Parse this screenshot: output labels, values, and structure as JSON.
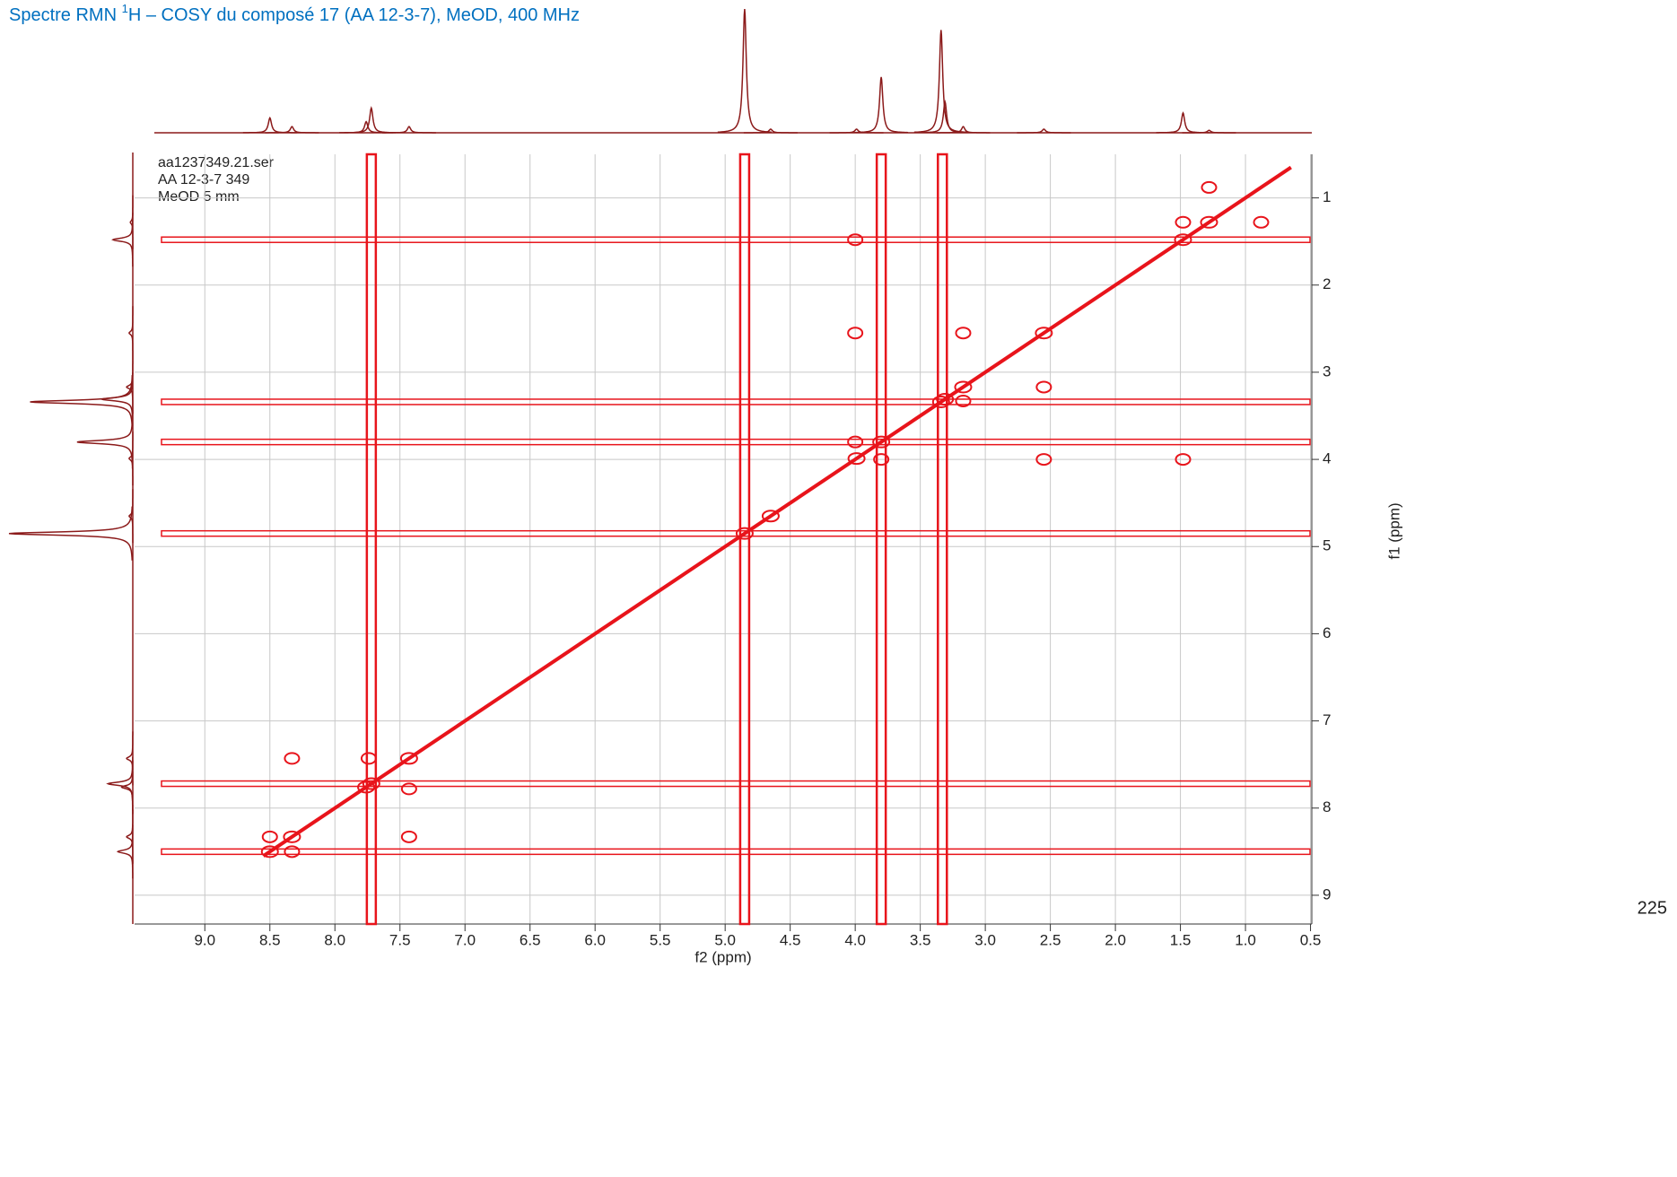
{
  "chart_data": {
    "type": "cosy",
    "title": [
      "Spectre RMN ",
      "1",
      "H – COSY du composé 17 (AA 12-3-7), MeOD, 400 MHz"
    ],
    "annotations": [
      "aa1237349.21.ser",
      "AA 12-3-7 349",
      "MeOD 5 mm"
    ],
    "xlabel": "f2 (ppm)",
    "ylabel": "f1 (ppm)",
    "page_number": "225",
    "xlim": [
      9.54,
      0.49
    ],
    "xticks": [
      {
        "value": 9,
        "label": "9.0"
      },
      8.5,
      {
        "value": 8,
        "label": "8.0"
      },
      7.5,
      {
        "value": 7,
        "label": "7.0"
      },
      6.5,
      {
        "value": 6,
        "label": "6.0"
      },
      5.5,
      {
        "value": 5,
        "label": "5.0"
      },
      4.5,
      {
        "value": 4,
        "label": "4.0"
      },
      3.5,
      {
        "value": 3,
        "label": "3.0"
      },
      2.5,
      {
        "value": 2,
        "label": "2.0"
      },
      1.5,
      {
        "value": 1,
        "label": "1.0"
      },
      0.5
    ],
    "ylim": [
      0.5,
      9.33
    ],
    "yticks": [
      1,
      2,
      3,
      4,
      5,
      6,
      7,
      8,
      9
    ],
    "grid": true,
    "spectrum_color": "#8b1a1a",
    "contour_color": "#e8141b",
    "peaks": [
      {
        "shift": 8.5,
        "height": 12
      },
      {
        "shift": 8.33,
        "height": 5
      },
      {
        "shift": 7.76,
        "height": 9
      },
      {
        "shift": 7.72,
        "height": 20
      },
      {
        "shift": 7.43,
        "height": 5
      },
      {
        "shift": 4.85,
        "height": 100
      },
      {
        "shift": 4.65,
        "height": 3
      },
      {
        "shift": 3.99,
        "height": 3
      },
      {
        "shift": 3.8,
        "height": 45
      },
      {
        "shift": 3.34,
        "height": 83
      },
      {
        "shift": 3.31,
        "height": 25
      },
      {
        "shift": 3.17,
        "height": 5
      },
      {
        "shift": 2.55,
        "height": 3
      },
      {
        "shift": 1.48,
        "height": 16
      },
      {
        "shift": 1.28,
        "height": 2
      }
    ],
    "diagonal": [
      8.55,
      0.65
    ],
    "vertical_streaks": [
      7.72,
      4.85,
      3.8,
      3.33
    ],
    "horizontal_streaks": [
      8.5,
      7.72,
      4.85,
      3.8,
      3.34,
      1.48
    ],
    "cross_peaks": [
      {
        "f2": 8.33,
        "f1": 7.43
      },
      {
        "f2": 7.74,
        "f1": 7.43
      },
      {
        "f2": 7.43,
        "f1": 8.33
      },
      {
        "f2": 7.43,
        "f1": 7.78
      },
      {
        "f2": 8.33,
        "f1": 8.5
      },
      {
        "f2": 8.5,
        "f1": 8.33
      },
      {
        "f2": 4.0,
        "f1": 1.48
      },
      {
        "f2": 1.48,
        "f1": 4.0
      },
      {
        "f2": 2.55,
        "f1": 3.17
      },
      {
        "f2": 2.55,
        "f1": 4.0
      },
      {
        "f2": 4.0,
        "f1": 2.55
      },
      {
        "f2": 3.17,
        "f1": 2.55
      },
      {
        "f2": 0.88,
        "f1": 1.28
      },
      {
        "f2": 1.28,
        "f1": 0.88
      },
      {
        "f2": 3.17,
        "f1": 3.33
      },
      {
        "f2": 4.0,
        "f1": 3.8
      },
      {
        "f2": 1.48,
        "f1": 1.28
      },
      {
        "f2": 3.8,
        "f1": 4.0
      }
    ]
  }
}
